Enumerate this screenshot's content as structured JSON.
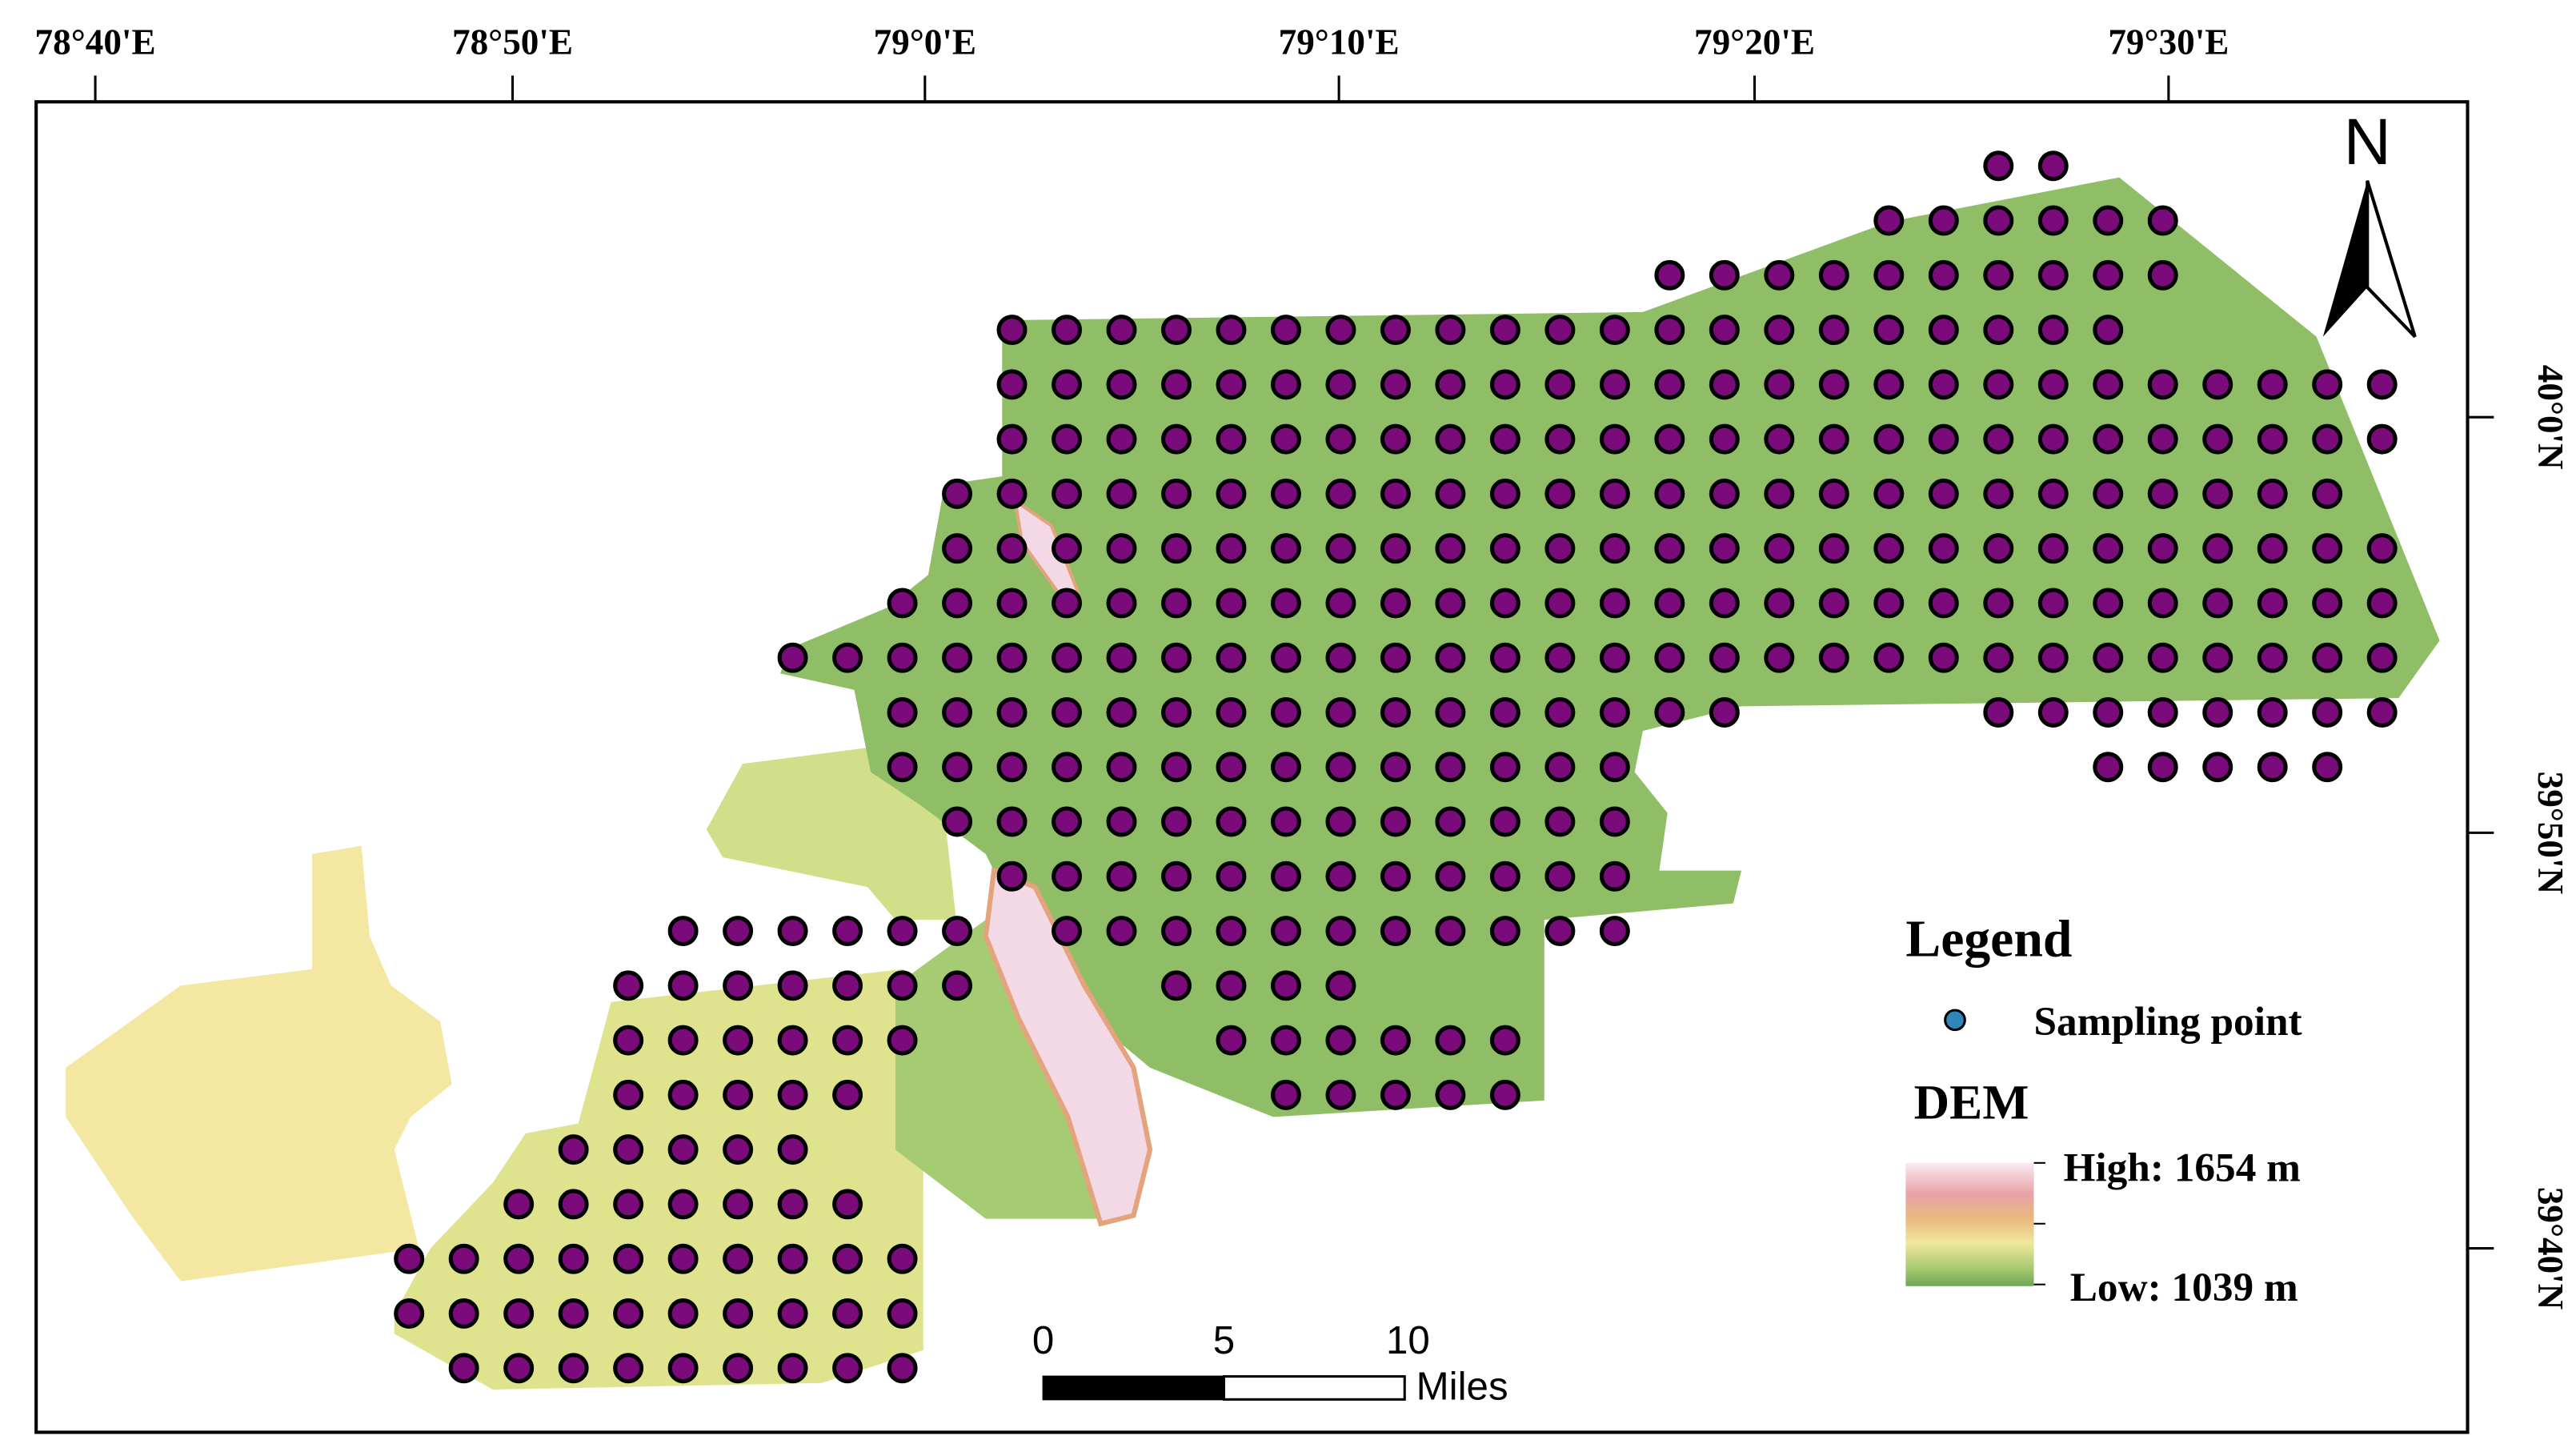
{
  "map": {
    "longitude_labels": [
      "78°40'E",
      "78°50'E",
      "79°0'E",
      "79°10'E",
      "79°20'E",
      "79°30'E"
    ],
    "latitude_labels": [
      "40°0'N",
      "39°50'N",
      "39°40'N"
    ],
    "north_label": "N",
    "legend": {
      "title": "Legend",
      "items": [
        "Sampling point"
      ],
      "dem_title": "DEM",
      "high": "High: 1654 m",
      "low": "Low: 1039 m"
    },
    "scale_bar": {
      "labels": [
        "0",
        "5",
        "10"
      ],
      "unit": "Miles"
    }
  }
}
